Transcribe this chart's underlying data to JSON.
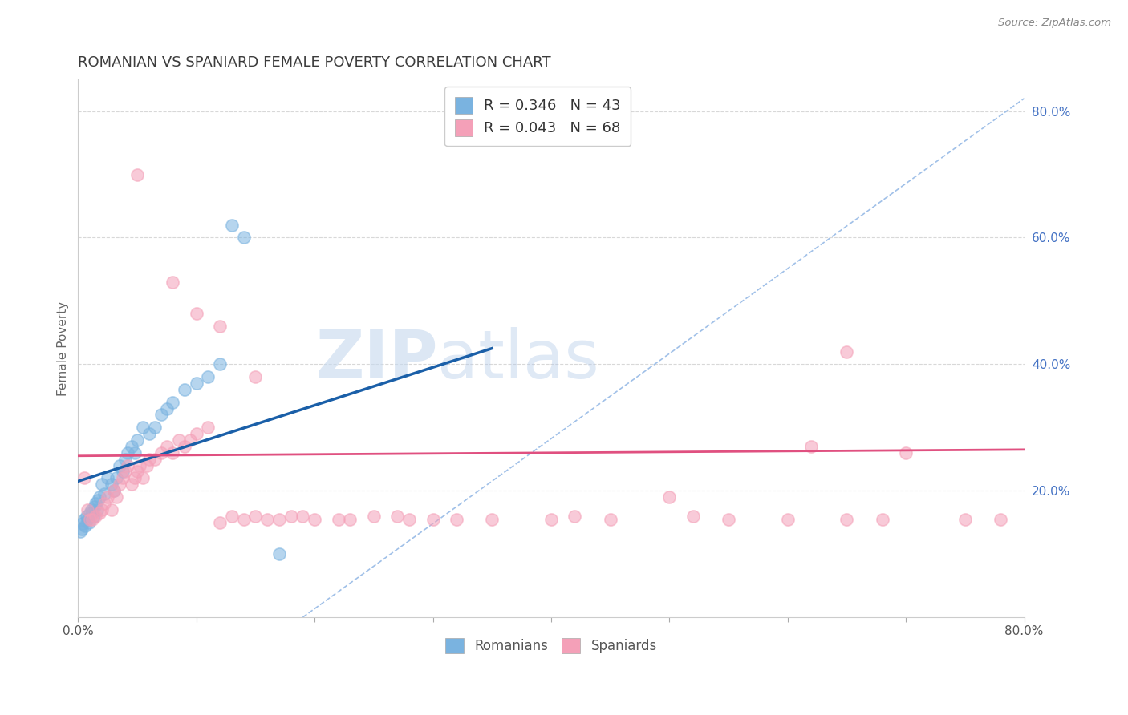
{
  "title": "ROMANIAN VS SPANIARD FEMALE POVERTY CORRELATION CHART",
  "source": "Source: ZipAtlas.com",
  "ylabel": "Female Poverty",
  "right_ytick_vals": [
    0.2,
    0.4,
    0.6,
    0.8
  ],
  "right_yticklabels": [
    "20.0%",
    "40.0%",
    "60.0%",
    "80.0%"
  ],
  "legend_entries": [
    {
      "R": "0.346",
      "N": "43"
    },
    {
      "R": "0.043",
      "N": "68"
    }
  ],
  "legend_labels": [
    "Romanians",
    "Spaniards"
  ],
  "watermark_zip": "ZIP",
  "watermark_atlas": "atlas",
  "title_color": "#3c3c3c",
  "title_fontsize": 13,
  "romanian_color": "#7ab3e0",
  "spaniard_color": "#f4a0b8",
  "romanian_line_color": "#1a5fa8",
  "spaniard_line_color": "#e05080",
  "diagonal_line_color": "#a0c0e8",
  "background_color": "#ffffff",
  "grid_color": "#d8d8d8",
  "xmin": 0.0,
  "xmax": 0.8,
  "ymin": 0.0,
  "ymax": 0.85,
  "romanian_points": [
    [
      0.005,
      0.155
    ],
    [
      0.006,
      0.145
    ],
    [
      0.007,
      0.16
    ],
    [
      0.008,
      0.155
    ],
    [
      0.009,
      0.15
    ],
    [
      0.01,
      0.165
    ],
    [
      0.011,
      0.17
    ],
    [
      0.012,
      0.165
    ],
    [
      0.013,
      0.16
    ],
    [
      0.014,
      0.175
    ],
    [
      0.015,
      0.18
    ],
    [
      0.016,
      0.17
    ],
    [
      0.017,
      0.185
    ],
    [
      0.018,
      0.19
    ],
    [
      0.02,
      0.21
    ],
    [
      0.022,
      0.195
    ],
    [
      0.025,
      0.22
    ],
    [
      0.028,
      0.21
    ],
    [
      0.03,
      0.2
    ],
    [
      0.032,
      0.22
    ],
    [
      0.035,
      0.24
    ],
    [
      0.038,
      0.23
    ],
    [
      0.04,
      0.25
    ],
    [
      0.042,
      0.26
    ],
    [
      0.045,
      0.27
    ],
    [
      0.048,
      0.26
    ],
    [
      0.05,
      0.28
    ],
    [
      0.055,
      0.3
    ],
    [
      0.06,
      0.29
    ],
    [
      0.065,
      0.3
    ],
    [
      0.07,
      0.32
    ],
    [
      0.075,
      0.33
    ],
    [
      0.08,
      0.34
    ],
    [
      0.09,
      0.36
    ],
    [
      0.1,
      0.37
    ],
    [
      0.11,
      0.38
    ],
    [
      0.12,
      0.4
    ],
    [
      0.13,
      0.62
    ],
    [
      0.14,
      0.6
    ],
    [
      0.17,
      0.1
    ],
    [
      0.003,
      0.14
    ],
    [
      0.004,
      0.148
    ],
    [
      0.002,
      0.135
    ]
  ],
  "spaniard_points": [
    [
      0.005,
      0.22
    ],
    [
      0.008,
      0.17
    ],
    [
      0.01,
      0.155
    ],
    [
      0.012,
      0.155
    ],
    [
      0.015,
      0.16
    ],
    [
      0.018,
      0.165
    ],
    [
      0.02,
      0.17
    ],
    [
      0.022,
      0.18
    ],
    [
      0.025,
      0.19
    ],
    [
      0.028,
      0.17
    ],
    [
      0.03,
      0.2
    ],
    [
      0.032,
      0.19
    ],
    [
      0.035,
      0.21
    ],
    [
      0.038,
      0.22
    ],
    [
      0.04,
      0.23
    ],
    [
      0.042,
      0.24
    ],
    [
      0.045,
      0.21
    ],
    [
      0.048,
      0.22
    ],
    [
      0.05,
      0.23
    ],
    [
      0.052,
      0.24
    ],
    [
      0.055,
      0.22
    ],
    [
      0.058,
      0.24
    ],
    [
      0.06,
      0.25
    ],
    [
      0.065,
      0.25
    ],
    [
      0.07,
      0.26
    ],
    [
      0.075,
      0.27
    ],
    [
      0.08,
      0.26
    ],
    [
      0.085,
      0.28
    ],
    [
      0.09,
      0.27
    ],
    [
      0.095,
      0.28
    ],
    [
      0.1,
      0.29
    ],
    [
      0.11,
      0.3
    ],
    [
      0.12,
      0.15
    ],
    [
      0.13,
      0.16
    ],
    [
      0.14,
      0.155
    ],
    [
      0.15,
      0.16
    ],
    [
      0.16,
      0.155
    ],
    [
      0.17,
      0.155
    ],
    [
      0.18,
      0.16
    ],
    [
      0.19,
      0.16
    ],
    [
      0.2,
      0.155
    ],
    [
      0.22,
      0.155
    ],
    [
      0.23,
      0.155
    ],
    [
      0.25,
      0.16
    ],
    [
      0.27,
      0.16
    ],
    [
      0.28,
      0.155
    ],
    [
      0.3,
      0.155
    ],
    [
      0.32,
      0.155
    ],
    [
      0.35,
      0.155
    ],
    [
      0.4,
      0.155
    ],
    [
      0.42,
      0.16
    ],
    [
      0.45,
      0.155
    ],
    [
      0.5,
      0.19
    ],
    [
      0.52,
      0.16
    ],
    [
      0.55,
      0.155
    ],
    [
      0.6,
      0.155
    ],
    [
      0.62,
      0.27
    ],
    [
      0.65,
      0.155
    ],
    [
      0.68,
      0.155
    ],
    [
      0.7,
      0.26
    ],
    [
      0.75,
      0.155
    ],
    [
      0.78,
      0.155
    ],
    [
      0.05,
      0.7
    ],
    [
      0.08,
      0.53
    ],
    [
      0.1,
      0.48
    ],
    [
      0.12,
      0.46
    ],
    [
      0.15,
      0.38
    ],
    [
      0.65,
      0.42
    ]
  ]
}
